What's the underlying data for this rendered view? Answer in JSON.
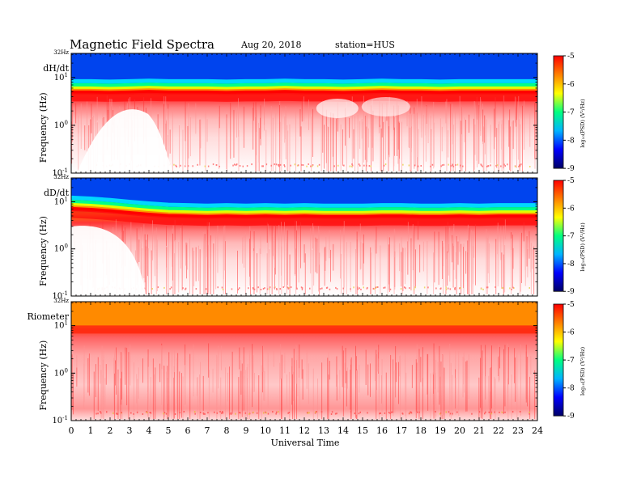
{
  "header": {
    "title": "Magnetic  Field  Spectra",
    "date": "Aug 20, 2018",
    "station": "station=HUS"
  },
  "colors": {
    "scale": [
      "#000066",
      "#0000ff",
      "#00b4ff",
      "#00ff80",
      "#ffff00",
      "#ff8000",
      "#ff0000",
      "#ff8080",
      "#ffffff"
    ]
  },
  "chart_data": [
    {
      "type": "heatmap",
      "panel_label": "dH/dt",
      "ylabel": "Frequency  (Hz)",
      "y_top_label": "32Hz",
      "y_ticks": [
        {
          "base": "10",
          "exp": "1"
        },
        {
          "base": "10",
          "exp": "0"
        },
        {
          "base": "10",
          "exp": "-1"
        }
      ],
      "ylim_hz": [
        0.1,
        32
      ],
      "colorbar": {
        "label": "log10(PSD) (V^2/Hz)",
        "label_display": "log₁₀(PSD) (V²/Hz)",
        "ticks": [
          "-5",
          "-6",
          "-7",
          "-8",
          "-9"
        ],
        "range": [
          -9,
          -5
        ]
      },
      "band_edge_freq_hz": [
        4.5,
        4.5,
        4.4,
        4.5,
        4.6,
        4.5,
        4.5,
        4.5,
        4.4,
        4.5,
        4.5,
        4.6,
        4.5,
        4.5,
        4.4,
        4.5,
        4.6,
        4.5,
        4.5,
        4.4,
        4.5,
        4.5,
        4.5,
        4.5,
        4.5
      ]
    },
    {
      "type": "heatmap",
      "panel_label": "dD/dt",
      "ylabel": "Frequency  (Hz)",
      "y_top_label": "32Hz",
      "y_ticks": [
        {
          "base": "10",
          "exp": "1"
        },
        {
          "base": "10",
          "exp": "0"
        },
        {
          "base": "10",
          "exp": "-1"
        }
      ],
      "ylim_hz": [
        0.1,
        32
      ],
      "colorbar": {
        "label": "log10(PSD) (V^2/Hz)",
        "label_display": "log₁₀(PSD) (V²/Hz)",
        "ticks": [
          "-5",
          "-6",
          "-7",
          "-8",
          "-9"
        ],
        "range": [
          -9,
          -5
        ]
      },
      "band_edge_freq_hz": [
        6.5,
        6.2,
        5.8,
        5.3,
        4.9,
        4.6,
        4.5,
        4.4,
        4.5,
        4.4,
        4.5,
        4.4,
        4.5,
        4.4,
        4.4,
        4.4,
        4.5,
        4.5,
        4.4,
        4.4,
        4.5,
        4.4,
        4.5,
        4.5,
        4.5
      ]
    },
    {
      "type": "heatmap",
      "panel_label": "Riometer",
      "ylabel": "Frequency  (Hz)",
      "y_top_label": "32Hz",
      "y_ticks": [
        {
          "base": "10",
          "exp": "1"
        },
        {
          "base": "10",
          "exp": "0"
        },
        {
          "base": "10",
          "exp": "-1"
        }
      ],
      "ylim_hz": [
        0.1,
        32
      ],
      "colorbar": {
        "label": "log10(PSD) (V^2/Hz)",
        "label_display": "log₁₀(PSD) (V²/Hz)",
        "ticks": [
          "-5",
          "-6",
          "-7",
          "-8",
          "-9"
        ],
        "range": [
          -9,
          -5
        ]
      },
      "band_edge_freq_hz": [
        9,
        9,
        9,
        9,
        9,
        9,
        9,
        9,
        9,
        9,
        9,
        9,
        9,
        9,
        9,
        9,
        9,
        9,
        9,
        9,
        9,
        9,
        9,
        9,
        9
      ]
    }
  ],
  "xaxis": {
    "label": "Universal Time",
    "ticks": [
      "0",
      "1",
      "2",
      "3",
      "4",
      "5",
      "6",
      "7",
      "8",
      "9",
      "10",
      "11",
      "12",
      "13",
      "14",
      "15",
      "16",
      "17",
      "18",
      "19",
      "20",
      "21",
      "22",
      "23",
      "24"
    ],
    "xlim_hours": [
      0,
      24
    ]
  }
}
